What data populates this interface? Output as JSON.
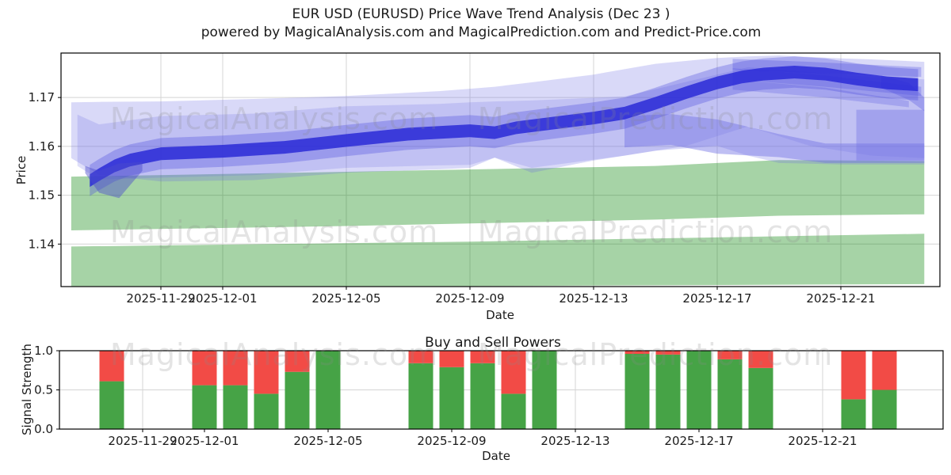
{
  "figure": {
    "title": "EUR USD (EURUSD) Price Wave Trend Analysis (Dec 23 )",
    "subtitle": "powered by MagicalAnalysis.com and MagicalPrediction.com and Predict-Price.com"
  },
  "watermarks": {
    "analysis": "MagicalAnalysis.com",
    "prediction": "MagicalPrediction.com"
  },
  "colors": {
    "buy_green": "#46a346",
    "sell_red": "#f24b46",
    "band_green": "rgba(0,128,0,0.35)",
    "core_blue": "rgba(42,42,215,0.85)",
    "grid": "#d4d4d4",
    "frame": "#000000"
  },
  "chart_data": [
    {
      "type": "area",
      "name": "price-wave-forecast",
      "title": "EUR USD (EURUSD) Price Wave Trend Analysis (Dec 23 )",
      "xlabel": "Date",
      "ylabel": "Price",
      "ylim": [
        1.1313,
        1.1791
      ],
      "x_start_date": "2025-11-26",
      "x_end_offset_days": 27.7,
      "grid": true,
      "legend": "none",
      "yticks": [
        {
          "label": "1.14",
          "value": 1.14
        },
        {
          "label": "1.15",
          "value": 1.15
        },
        {
          "label": "1.16",
          "value": 1.16
        },
        {
          "label": "1.17",
          "value": 1.17
        }
      ],
      "xticks": [
        "2025-11-29",
        "2025-12-01",
        "2025-12-05",
        "2025-12-09",
        "2025-12-13",
        "2025-12-17",
        "2025-12-21"
      ],
      "bands": [
        {
          "name": "green-support-lower",
          "color": "rgba(0,128,0,0.35)",
          "t": [
            0.1,
            13,
            27.7
          ],
          "top": [
            1.1395,
            1.1405,
            1.1421
          ],
          "bottom": [
            1.1314,
            1.1314,
            1.1318
          ]
        },
        {
          "name": "green-support-upper",
          "color": "rgba(0,128,0,0.35)",
          "t": [
            0.1,
            9,
            19,
            23,
            27.7
          ],
          "top": [
            1.1538,
            1.1548,
            1.156,
            1.1572,
            1.157
          ],
          "bottom": [
            1.1428,
            1.1437,
            1.145,
            1.1458,
            1.1461
          ]
        },
        {
          "name": "forecast-envelope-outer",
          "color": "rgba(108,108,228,0.26)",
          "t": [
            0.1,
            1,
            3,
            6,
            9,
            12,
            13,
            13.8,
            15,
            17,
            19,
            21,
            22,
            23,
            25,
            26,
            27.7
          ],
          "top": [
            1.169,
            1.1691,
            1.1692,
            1.1697,
            1.1703,
            1.1713,
            1.1718,
            1.1722,
            1.1731,
            1.1747,
            1.1769,
            1.1781,
            1.1784,
            1.1786,
            1.178,
            1.1778,
            1.1773
          ],
          "bottom": [
            1.1576,
            1.1542,
            1.1528,
            1.1531,
            1.1546,
            1.1553,
            1.1556,
            1.1577,
            1.1546,
            1.1571,
            1.1591,
            1.1601,
            1.1581,
            1.1566,
            1.1563,
            1.1563,
            1.1563
          ]
        },
        {
          "name": "forecast-envelope-inner",
          "color": "rgba(108,108,228,0.22)",
          "t": [
            0.3,
            1,
            3,
            6,
            9,
            12,
            13,
            13.8,
            15,
            18,
            20,
            22,
            24,
            26,
            27.7
          ],
          "top": [
            1.1665,
            1.1645,
            1.1662,
            1.1667,
            1.1682,
            1.1687,
            1.169,
            1.1692,
            1.1694,
            1.1702,
            1.1732,
            1.1762,
            1.1752,
            1.1742,
            1.1737
          ],
          "bottom": [
            1.156,
            1.1532,
            1.1536,
            1.1541,
            1.1556,
            1.1561,
            1.1562,
            1.1577,
            1.1556,
            1.1581,
            1.1601,
            1.1641,
            1.1601,
            1.1581,
            1.1576
          ]
        },
        {
          "name": "support-band-descending",
          "color": "rgba(112,112,228,0.45)",
          "t": [
            18,
            19.5,
            21,
            23,
            24.5,
            27.7
          ],
          "top": [
            1.1662,
            1.1666,
            1.1655,
            1.1625,
            1.1606,
            1.1606
          ],
          "bottom": [
            1.1598,
            1.1603,
            1.1585,
            1.1578,
            1.1566,
            1.1566
          ]
        },
        {
          "name": "support-band-end-block",
          "color": "rgba(112,112,228,0.38)",
          "t": [
            25.5,
            27.7
          ],
          "top": [
            1.1675,
            1.1675
          ],
          "bottom": [
            1.1571,
            1.1571
          ]
        },
        {
          "name": "wave-wisp-1",
          "color": "rgba(80,80,225,0.30)",
          "t": [
            21.5,
            24,
            27.6
          ],
          "top": [
            1.1779,
            1.1773,
            1.1762
          ],
          "bottom": [
            1.1757,
            1.175,
            1.1742
          ]
        },
        {
          "name": "wave-wisp-2",
          "color": "rgba(80,80,225,0.28)",
          "t": [
            21.5,
            24.5,
            27.6
          ],
          "top": [
            1.176,
            1.1745,
            1.1722
          ],
          "bottom": [
            1.1737,
            1.1722,
            1.1703
          ]
        },
        {
          "name": "wave-wisp-3",
          "color": "rgba(80,80,225,0.25)",
          "t": [
            21.5,
            24.5,
            27.2
          ],
          "top": [
            1.1737,
            1.172,
            1.1693
          ],
          "bottom": [
            1.1716,
            1.17,
            1.168
          ]
        },
        {
          "name": "wave-wisp-4",
          "color": "rgba(80,80,225,0.30)",
          "t": [
            26.3,
            27.2,
            27.7
          ],
          "top": [
            1.1745,
            1.173,
            1.17
          ],
          "bottom": [
            1.172,
            1.1695,
            1.1672
          ]
        },
        {
          "name": "wave-halo",
          "color": "rgba(75,75,222,0.33)",
          "t": [
            0.7,
            1.0,
            1.5,
            2,
            3,
            5,
            7,
            9,
            11,
            13,
            13.8,
            14.5,
            16,
            17,
            18,
            19,
            20,
            21,
            21.8,
            22.5,
            23.5,
            24.5,
            25.5,
            26.5,
            27.5
          ],
          "top": [
            1.1562,
            1.1574,
            1.1592,
            1.1604,
            1.1617,
            1.1622,
            1.163,
            1.1644,
            1.1657,
            1.1664,
            1.166,
            1.167,
            1.1682,
            1.169,
            1.17,
            1.172,
            1.1742,
            1.1762,
            1.1774,
            1.178,
            1.1784,
            1.178,
            1.177,
            1.1762,
            1.1758
          ],
          "bottom": [
            1.1498,
            1.151,
            1.1528,
            1.154,
            1.1553,
            1.1558,
            1.1566,
            1.158,
            1.1593,
            1.16,
            1.1596,
            1.1606,
            1.1618,
            1.1626,
            1.1636,
            1.1656,
            1.1678,
            1.1698,
            1.171,
            1.1716,
            1.172,
            1.1716,
            1.1706,
            1.1698,
            1.1694
          ]
        },
        {
          "name": "wave-core",
          "color": "rgba(42,42,215,0.85)",
          "t": [
            0.7,
            1.0,
            1.5,
            2,
            3,
            5,
            7,
            9,
            11,
            13,
            13.8,
            14.5,
            16,
            17,
            18,
            19,
            20,
            21,
            21.8,
            22.5,
            23.5,
            24.5,
            25.5,
            26.5,
            27.5
          ],
          "top": [
            1.1543,
            1.1555,
            1.1573,
            1.1585,
            1.1598,
            1.1603,
            1.1611,
            1.1625,
            1.1638,
            1.1645,
            1.1641,
            1.1651,
            1.1663,
            1.1671,
            1.1681,
            1.1701,
            1.1723,
            1.1743,
            1.1755,
            1.1761,
            1.1765,
            1.1761,
            1.1751,
            1.1743,
            1.1739
          ],
          "bottom": [
            1.1517,
            1.1529,
            1.1547,
            1.1559,
            1.1572,
            1.1577,
            1.1585,
            1.1599,
            1.1612,
            1.1619,
            1.1615,
            1.1625,
            1.1637,
            1.1645,
            1.1655,
            1.1675,
            1.1697,
            1.1717,
            1.1729,
            1.1735,
            1.1739,
            1.1735,
            1.1725,
            1.1717,
            1.1713
          ]
        },
        {
          "name": "start-tangle-wedge",
          "color": "rgba(75,75,205,0.45)",
          "t": [
            0.55,
            1.0,
            1.65,
            2.4
          ],
          "top": [
            1.156,
            1.155,
            1.1565,
            1.1568
          ],
          "bottom": [
            1.1545,
            1.1505,
            1.1494,
            1.155
          ]
        }
      ]
    },
    {
      "type": "bar",
      "name": "buy-sell-powers",
      "title": "Buy and Sell Powers",
      "xlabel": "Date",
      "ylabel": "Signal Strength",
      "ylim": [
        0,
        1.0
      ],
      "stacked": true,
      "grid": true,
      "x_start_date": "2025-11-26",
      "yticks": [
        {
          "label": "0.0",
          "value": 0.0
        },
        {
          "label": "0.5",
          "value": 0.5
        },
        {
          "label": "1.0",
          "value": 1.0
        }
      ],
      "xticks": [
        "2025-11-29",
        "2025-12-01",
        "2025-12-05",
        "2025-12-09",
        "2025-12-13",
        "2025-12-17",
        "2025-12-21"
      ],
      "categories": [
        "2025-11-28",
        "2025-12-01",
        "2025-12-02",
        "2025-12-03",
        "2025-12-04",
        "2025-12-05",
        "2025-12-08",
        "2025-12-09",
        "2025-12-10",
        "2025-12-11",
        "2025-12-12",
        "2025-12-15",
        "2025-12-16",
        "2025-12-17",
        "2025-12-18",
        "2025-12-19",
        "2025-12-22",
        "2025-12-23"
      ],
      "series": [
        {
          "name": "Buy",
          "color": "#46a346",
          "values": [
            0.61,
            0.56,
            0.56,
            0.45,
            0.73,
            1.0,
            0.84,
            0.79,
            0.84,
            0.45,
            1.0,
            0.96,
            0.95,
            1.0,
            0.89,
            0.78,
            0.38,
            0.5
          ]
        },
        {
          "name": "Sell",
          "color": "#f24b46",
          "values": [
            0.39,
            0.44,
            0.44,
            0.55,
            0.27,
            0.0,
            0.16,
            0.21,
            0.16,
            0.55,
            0.0,
            0.04,
            0.05,
            0.0,
            0.11,
            0.22,
            0.62,
            0.5
          ]
        }
      ]
    }
  ]
}
